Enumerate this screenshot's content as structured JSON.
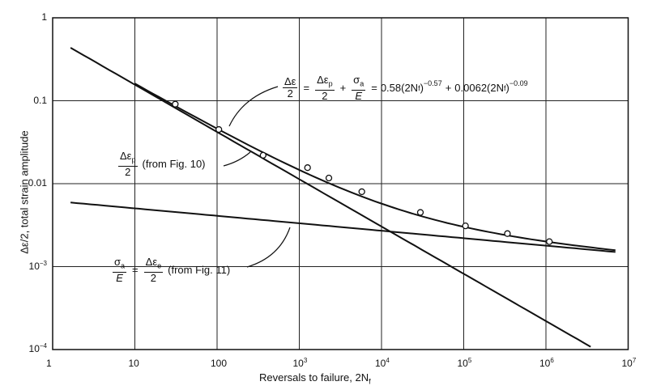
{
  "chart_data": {
    "type": "line",
    "scale": {
      "x": "log",
      "y": "log"
    },
    "xlim": [
      1,
      10000000
    ],
    "ylim": [
      0.0001,
      1
    ],
    "grid": true,
    "xlabel": "Reversals to failure, 2N",
    "xlabel_sub": "f",
    "ylabel": "Δε/2, total strain amplitude",
    "xticks": [
      {
        "base": "1",
        "exp": ""
      },
      {
        "base": "10",
        "exp": ""
      },
      {
        "base": "100",
        "exp": ""
      },
      {
        "base": "10",
        "exp": "3"
      },
      {
        "base": "10",
        "exp": "4"
      },
      {
        "base": "10",
        "exp": "5"
      },
      {
        "base": "10",
        "exp": "6"
      },
      {
        "base": "10",
        "exp": "7"
      }
    ],
    "yticks": [
      {
        "base": "1",
        "exp": ""
      },
      {
        "base": "0.1",
        "exp": ""
      },
      {
        "base": "0.01",
        "exp": ""
      },
      {
        "base": "10",
        "exp": "−3"
      },
      {
        "base": "10",
        "exp": "−4"
      }
    ],
    "series": [
      {
        "kind": "plastic",
        "coef": 0.58,
        "exponent": -0.57,
        "x_range": [
          1.65,
          3500000
        ]
      },
      {
        "kind": "elastic",
        "coef": 0.0062,
        "exponent": -0.09,
        "x_range": [
          1.65,
          7000000
        ]
      },
      {
        "kind": "total",
        "x_range": [
          10,
          7000000
        ]
      }
    ],
    "points": {
      "x": [
        31,
        105,
        363,
        1260,
        2290,
        5760,
        29700,
        105000,
        340000,
        1100000
      ],
      "y": [
        0.091,
        0.045,
        0.022,
        0.0156,
        0.0117,
        0.008,
        0.0045,
        0.0031,
        0.0025,
        0.002
      ]
    },
    "annotations": {
      "total": {
        "lhs_num": "Δε",
        "lhs_den": "2",
        "eq1": "=",
        "p_num": "Δε",
        "p_sub": "p",
        "p_den": "2",
        "plus": "+",
        "s_num": "σ",
        "s_sub": "a",
        "s_den": "E",
        "eq2": "=",
        "term1": "0.58(2N",
        "term1_sub": "f",
        "term1_close": ")",
        "term1_exp": "−0.57",
        "plus2": "+",
        "term2": "0.0062(2N",
        "term2_sub": "f",
        "term2_close": ")",
        "term2_exp": "−0.09"
      },
      "plastic": {
        "num": "Δε",
        "sub": "p",
        "den": "2",
        "text": "(from Fig. 10)"
      },
      "elastic": {
        "s_num": "σ",
        "s_sub": "a",
        "s_den": "E",
        "eq": "=",
        "num": "Δε",
        "sub": "e",
        "den": "2",
        "text": "(from Fig. 11)"
      }
    }
  }
}
